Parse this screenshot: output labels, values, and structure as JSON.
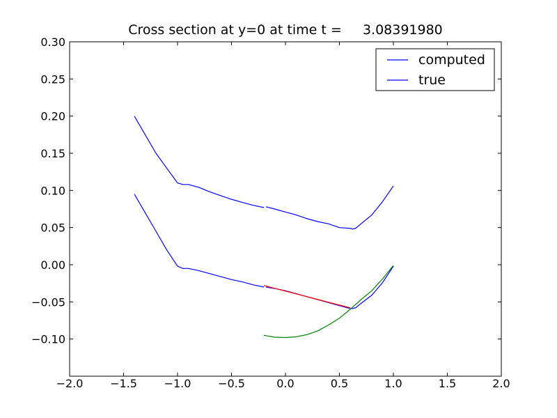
{
  "chart_data": {
    "type": "line",
    "title": "Cross section at y=0 at time t =     3.08391980",
    "xlabel": "",
    "ylabel": "",
    "xlim": [
      -2.0,
      2.0
    ],
    "ylim": [
      -0.15,
      0.3
    ],
    "xticks": [
      -2.0,
      -1.5,
      -1.0,
      -0.5,
      0.0,
      0.5,
      1.0,
      1.5,
      2.0
    ],
    "xtick_labels": [
      "−2.0",
      "−1.5",
      "−1.0",
      "−0.5",
      "0.0",
      "0.5",
      "1.0",
      "1.5",
      "2.0"
    ],
    "yticks": [
      -0.1,
      -0.05,
      0.0,
      0.05,
      0.1,
      0.15,
      0.2,
      0.25,
      0.3
    ],
    "ytick_labels": [
      "−0.10",
      "−0.05",
      "0.00",
      "0.05",
      "0.10",
      "0.15",
      "0.20",
      "0.25",
      "0.30"
    ],
    "grid": false,
    "legend": "top-right",
    "series": [
      {
        "name": "computed",
        "color": "#0000ff",
        "segments": [
          [
            [
              -1.4,
              0.2
            ],
            [
              -1.3,
              0.175
            ],
            [
              -1.2,
              0.15
            ],
            [
              -1.1,
              0.13
            ],
            [
              -1.0,
              0.11
            ],
            [
              -0.95,
              0.108
            ],
            [
              -0.9,
              0.108
            ],
            [
              -0.8,
              0.104
            ],
            [
              -0.7,
              0.098
            ],
            [
              -0.6,
              0.093
            ],
            [
              -0.5,
              0.088
            ],
            [
              -0.4,
              0.084
            ],
            [
              -0.3,
              0.08
            ],
            [
              -0.2,
              0.077
            ]
          ],
          [
            [
              -0.18,
              0.078
            ],
            [
              -0.1,
              0.075
            ],
            [
              0.0,
              0.071
            ],
            [
              0.1,
              0.067
            ],
            [
              0.2,
              0.062
            ],
            [
              0.3,
              0.058
            ],
            [
              0.4,
              0.055
            ],
            [
              0.5,
              0.05
            ],
            [
              0.6,
              0.049
            ],
            [
              0.62,
              0.048
            ],
            [
              0.65,
              0.049
            ],
            [
              0.7,
              0.055
            ],
            [
              0.8,
              0.067
            ],
            [
              0.9,
              0.085
            ],
            [
              1.0,
              0.106
            ]
          ]
        ]
      },
      {
        "name": "true",
        "color": "#0000ff",
        "segments": [
          [
            [
              -1.4,
              0.095
            ],
            [
              -1.3,
              0.07
            ],
            [
              -1.2,
              0.045
            ],
            [
              -1.1,
              0.02
            ],
            [
              -1.0,
              -0.002
            ],
            [
              -0.95,
              -0.005
            ],
            [
              -0.9,
              -0.005
            ],
            [
              -0.8,
              -0.008
            ],
            [
              -0.7,
              -0.012
            ],
            [
              -0.6,
              -0.016
            ],
            [
              -0.5,
              -0.02
            ],
            [
              -0.4,
              -0.023
            ],
            [
              -0.3,
              -0.027
            ],
            [
              -0.2,
              -0.03
            ]
          ],
          [
            [
              -0.18,
              -0.03
            ],
            [
              -0.1,
              -0.032
            ],
            [
              0.0,
              -0.035
            ],
            [
              0.1,
              -0.039
            ],
            [
              0.2,
              -0.043
            ],
            [
              0.3,
              -0.047
            ],
            [
              0.4,
              -0.051
            ],
            [
              0.5,
              -0.055
            ],
            [
              0.6,
              -0.059
            ],
            [
              0.62,
              -0.059
            ],
            [
              0.65,
              -0.058
            ],
            [
              0.7,
              -0.052
            ],
            [
              0.8,
              -0.041
            ],
            [
              0.9,
              -0.024
            ],
            [
              1.0,
              -0.002
            ]
          ]
        ]
      },
      {
        "color": "#ff0000",
        "segments": [
          [
            [
              -0.2,
              -0.028
            ],
            [
              0.6,
              -0.058
            ]
          ]
        ]
      },
      {
        "color": "#008000",
        "segments": [
          [
            [
              -0.2,
              -0.095
            ],
            [
              -0.1,
              -0.0975
            ],
            [
              0.0,
              -0.098
            ],
            [
              0.1,
              -0.097
            ],
            [
              0.2,
              -0.094
            ],
            [
              0.3,
              -0.089
            ],
            [
              0.4,
              -0.081
            ],
            [
              0.5,
              -0.072
            ],
            [
              0.6,
              -0.06
            ],
            [
              0.7,
              -0.047
            ],
            [
              0.8,
              -0.035
            ],
            [
              0.9,
              -0.019
            ],
            [
              1.0,
              -0.001
            ]
          ]
        ]
      }
    ]
  }
}
